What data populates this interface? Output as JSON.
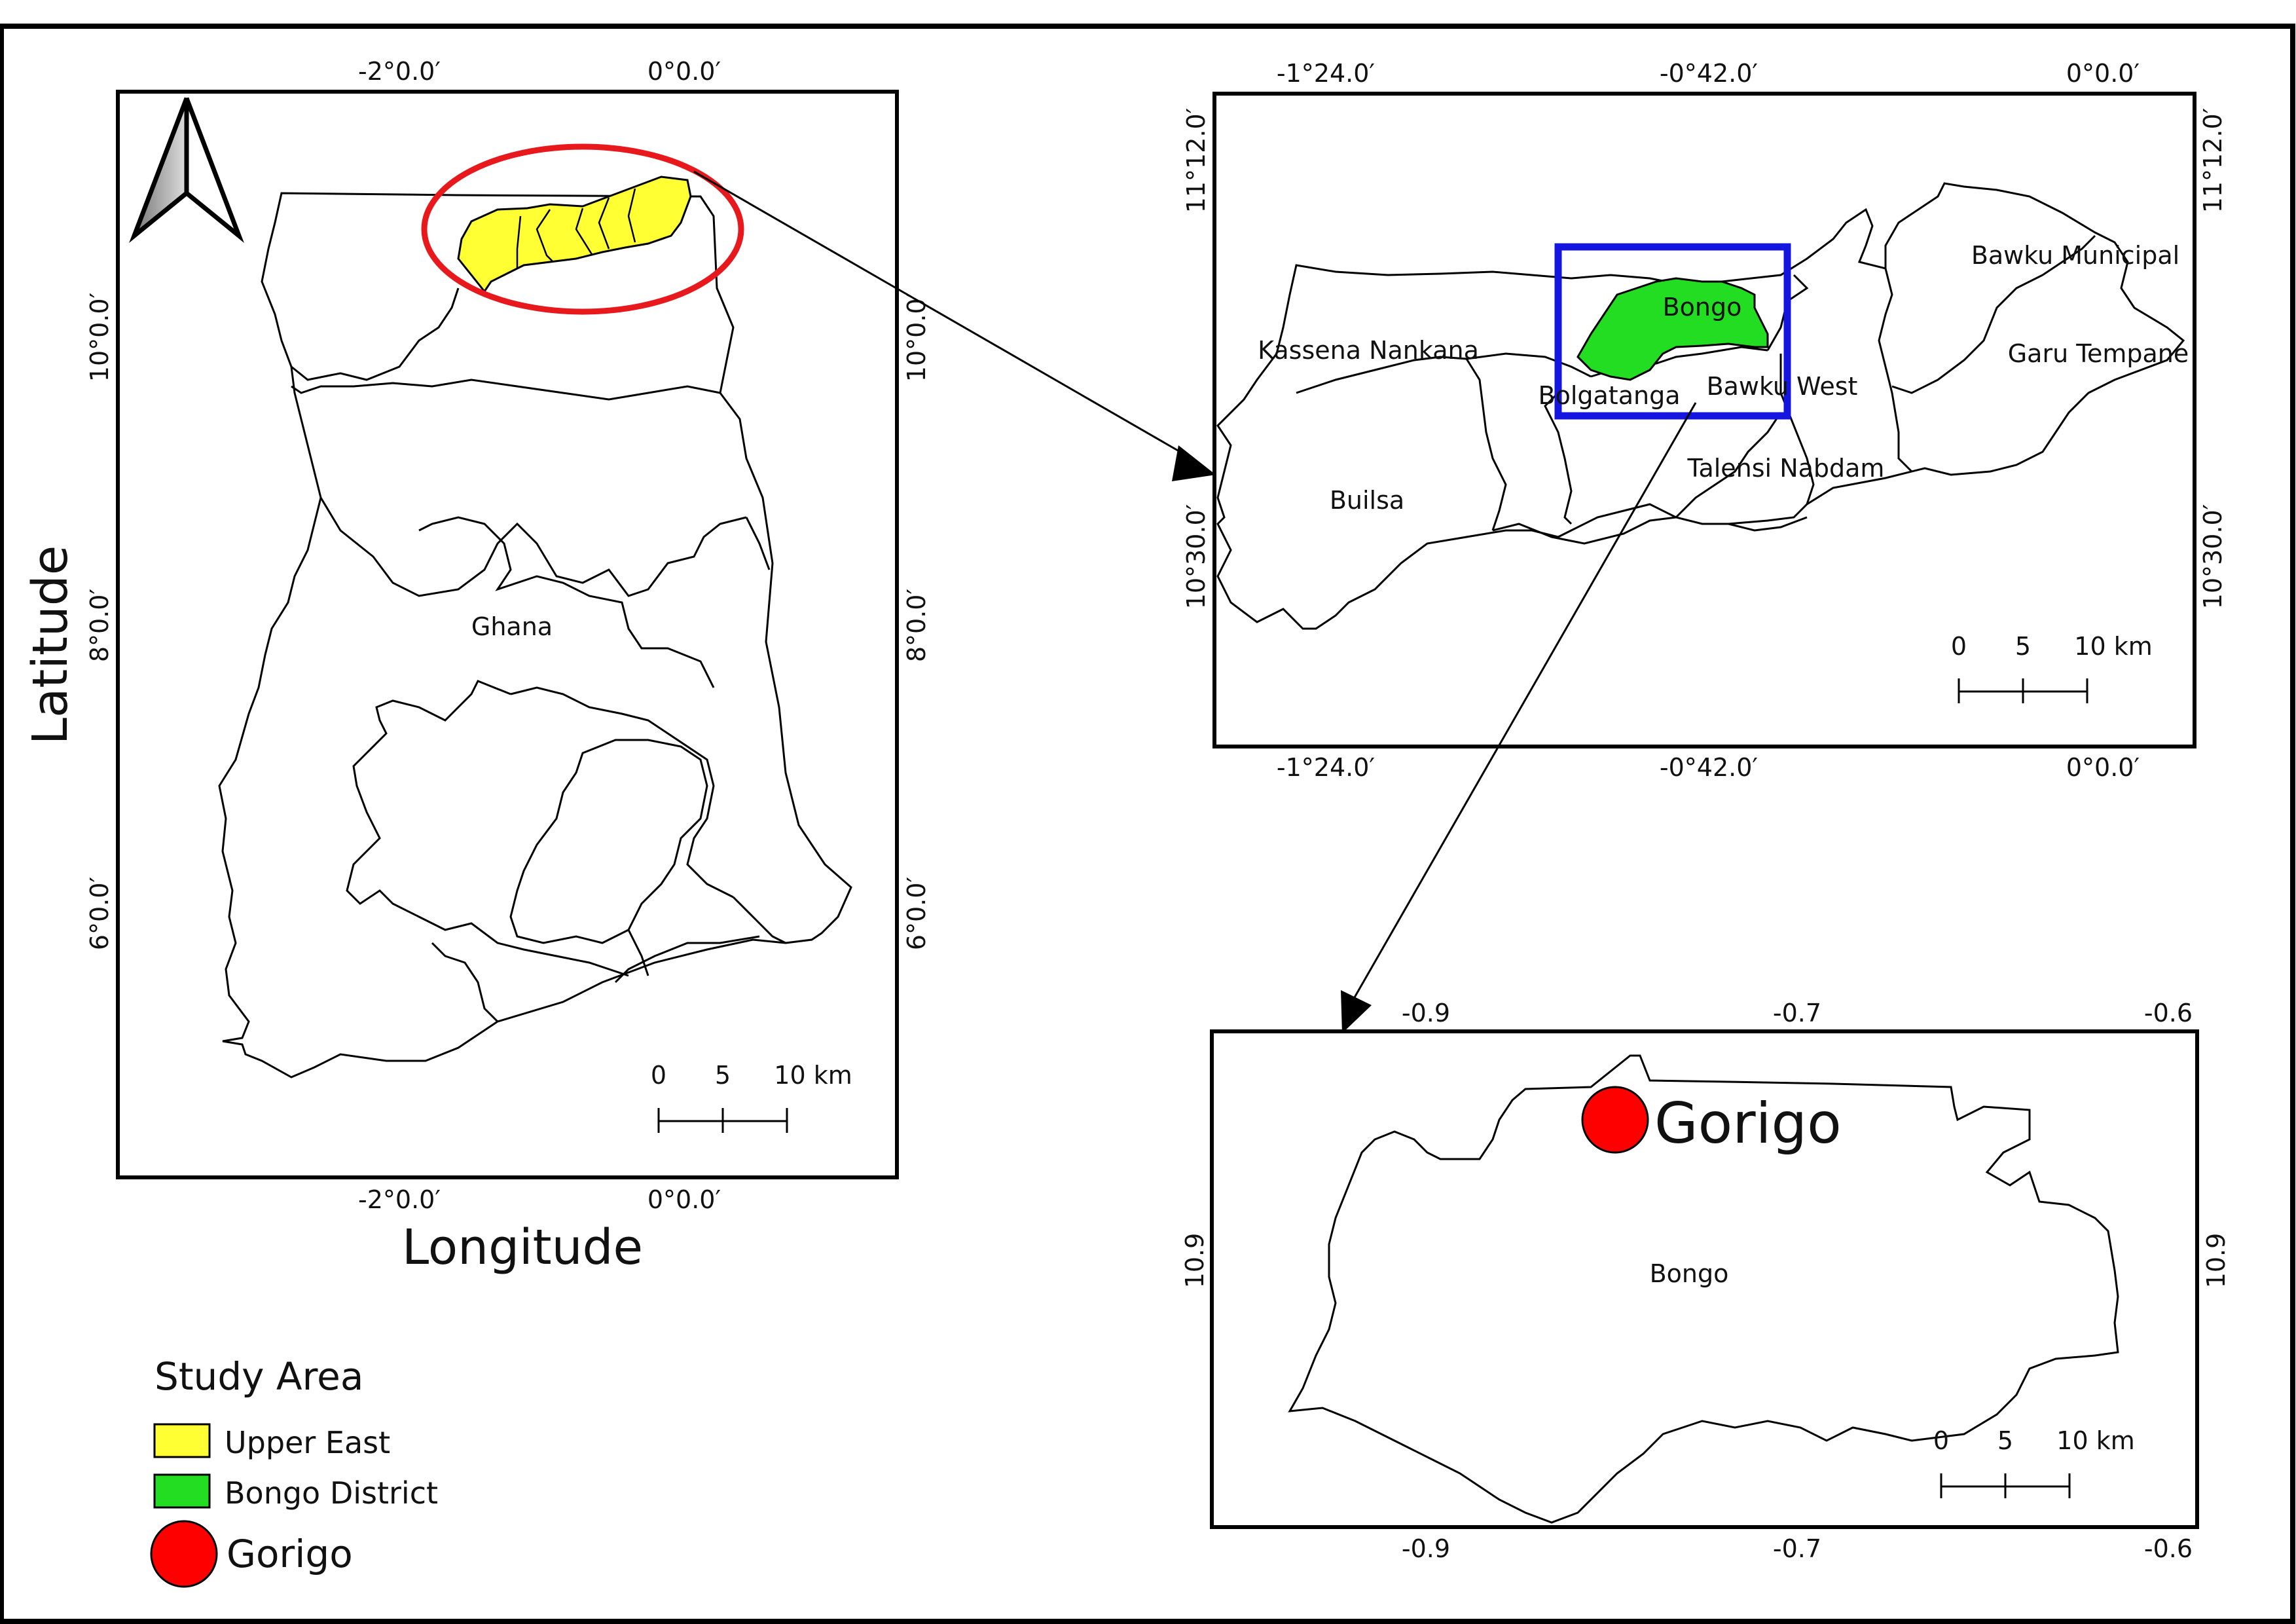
{
  "panels": {
    "ghana_map": {
      "country_label": "Ghana",
      "top_ticks": [
        "-2°0.0′",
        "0°0.0′"
      ],
      "bottom_ticks": [
        "-2°0.0′",
        "0°0.0′"
      ],
      "left_ticks": [
        "10°0.0′",
        "8°0.0′",
        "6°0.0′"
      ],
      "right_ticks": [
        "10°0.0′",
        "8°0.0′",
        "6°0.0′"
      ],
      "scale": {
        "labels": [
          "0",
          "5",
          "10 km"
        ]
      },
      "x_axis_title": "Longitude",
      "y_axis_title": "Latitude"
    },
    "region_map": {
      "top_ticks": [
        "-1°24.0′",
        "-0°42.0′",
        "0°0.0′"
      ],
      "bottom_ticks": [
        "-1°24.0′",
        "-0°42.0′",
        "0°0.0′"
      ],
      "left_ticks": [
        "11°12.0′",
        "10°30.0′"
      ],
      "right_ticks": [
        "11°12.0′",
        "10°30.0′"
      ],
      "districts": [
        "Kassena Nankana",
        "Builsa",
        "Bongo",
        "Bolgatanga",
        "Bawku West",
        "Talensi Nabdam",
        "Bawku Municipal",
        "Garu Tempane"
      ],
      "scale": {
        "labels": [
          "0",
          "5",
          "10 km"
        ]
      }
    },
    "district_map": {
      "top_ticks": [
        "-0.9",
        "-0.7",
        "-0.6"
      ],
      "bottom_ticks": [
        "-0.9",
        "-0.7",
        "-0.6"
      ],
      "left_ticks": [
        "10.9"
      ],
      "right_ticks": [
        "10.9"
      ],
      "district_label": "Bongo",
      "point_label": "Gorigo",
      "scale": {
        "labels": [
          "0",
          "5",
          "10 km"
        ]
      }
    }
  },
  "legend": {
    "title": "Study Area",
    "items": [
      {
        "label": "Upper East",
        "color": "#ffff33"
      },
      {
        "label": "Bongo District",
        "color": "#22dd22"
      },
      {
        "label": "Gorigo",
        "color": "#ff0000"
      }
    ]
  },
  "colors": {
    "highlight_ellipse": "#e8191c",
    "selection_box": "#1515e0",
    "upper_east": "#ffff33",
    "bongo": "#22dd22",
    "gorigo": "#ff0000"
  }
}
